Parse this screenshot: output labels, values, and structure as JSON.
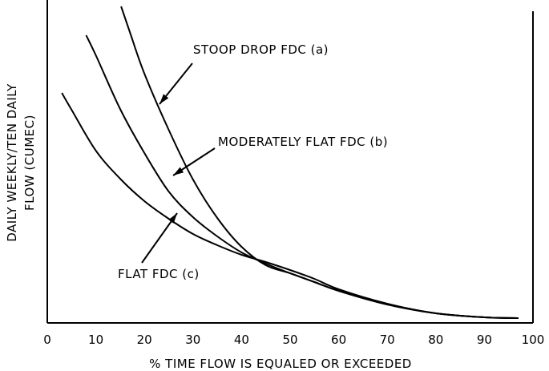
{
  "chart_data": {
    "type": "line",
    "title": "",
    "xlabel": "% TIME FLOW IS EQUALED OR EXCEEDED",
    "ylabel_lines": [
      "DAILY WEEKLY/TEN DAILY",
      "FLOW (CUMEC)"
    ],
    "xlim": [
      0,
      100
    ],
    "xticks": [
      "0",
      "10",
      "20",
      "30",
      "40",
      "50",
      "60",
      "70",
      "80",
      "90",
      "100"
    ],
    "yticks_shown": false,
    "grid": false,
    "series": [
      {
        "name": "STOOP DROP FDC (a)",
        "x": [
          15.2,
          17,
          20,
          25,
          30,
          35,
          40,
          45,
          50,
          55,
          60,
          70,
          80,
          90,
          97
        ],
        "y": [
          395,
          363,
          311,
          241,
          179,
          131,
          95,
          72,
          62,
          51,
          40,
          23,
          12,
          7,
          6
        ]
      },
      {
        "name": "MODERATELY FLAT FDC (b)",
        "x": [
          8,
          10,
          15,
          20,
          25,
          30,
          35,
          40,
          45,
          50,
          55,
          60,
          70,
          80,
          90,
          97
        ],
        "y": [
          359,
          334,
          267,
          212,
          164,
          132,
          108,
          88,
          74,
          62,
          51,
          40,
          23,
          12,
          7,
          6
        ]
      },
      {
        "name": "FLAT FDC (c)",
        "x": [
          3,
          5,
          10,
          15,
          20,
          25,
          30,
          35,
          40,
          45,
          50,
          55,
          60,
          70,
          80,
          90,
          97
        ],
        "y": [
          287,
          266,
          215,
          180,
          152,
          130,
          111,
          97,
          85,
          76,
          66,
          55,
          42,
          24,
          12,
          7,
          6
        ]
      }
    ],
    "annotations": [
      {
        "text": "STOOP DROP FDC (a)",
        "series": 0
      },
      {
        "text": "MODERATELY FLAT FDC (b)",
        "series": 1
      },
      {
        "text": "FLAT FDC (c)",
        "series": 2
      }
    ]
  }
}
